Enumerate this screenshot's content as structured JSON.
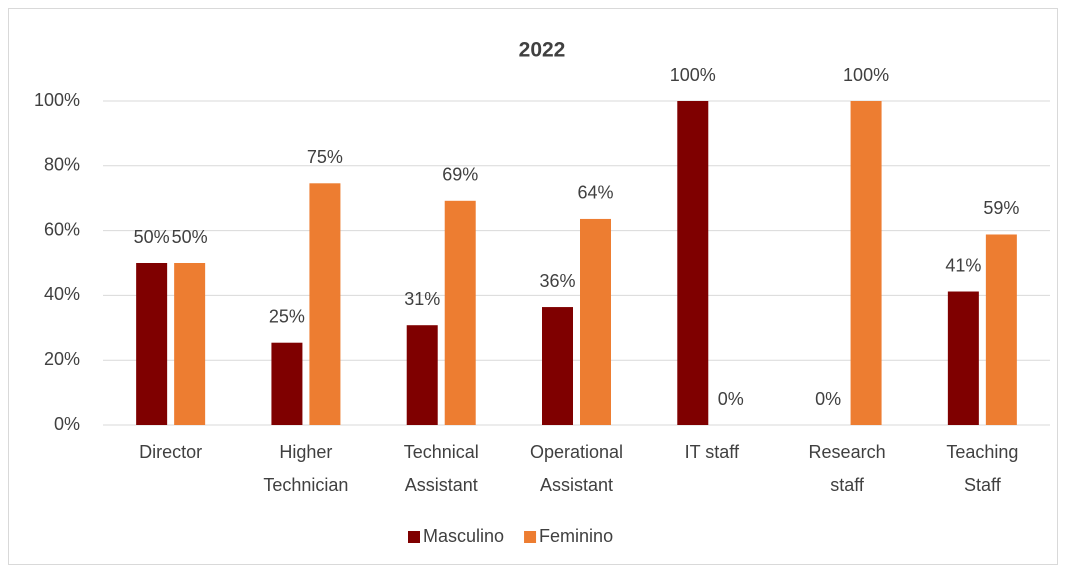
{
  "chart_data": {
    "type": "bar",
    "title": "2022",
    "categories": [
      [
        "Director"
      ],
      [
        "Higher",
        "Technician"
      ],
      [
        "Technical",
        "Assistant"
      ],
      [
        "Operational",
        "Assistant"
      ],
      [
        "IT staff"
      ],
      [
        "Research",
        "staff"
      ],
      [
        "Teaching",
        "Staff"
      ]
    ],
    "series": [
      {
        "name": "Masculino",
        "color": "#7f0000",
        "values": [
          50,
          25.4,
          30.8,
          36.4,
          100,
          0,
          41.2
        ],
        "value_labels": [
          "50%",
          "25%",
          "31%",
          "36%",
          "100%",
          "0%",
          "41%"
        ]
      },
      {
        "name": "Feminino",
        "color": "#ed7d31",
        "values": [
          50,
          74.6,
          69.2,
          63.6,
          0,
          100,
          58.8
        ],
        "value_labels": [
          "50%",
          "75%",
          "69%",
          "64%",
          "0%",
          "100%",
          "59%"
        ]
      }
    ],
    "ylim": [
      0,
      100
    ],
    "yticks": [
      {
        "value": 0,
        "label": "0%"
      },
      {
        "value": 20,
        "label": "20%"
      },
      {
        "value": 40,
        "label": "40%"
      },
      {
        "value": 60,
        "label": "60%"
      },
      {
        "value": 80,
        "label": "80%"
      },
      {
        "value": 100,
        "label": "100%"
      }
    ],
    "grid": true,
    "legend": "bottom"
  }
}
